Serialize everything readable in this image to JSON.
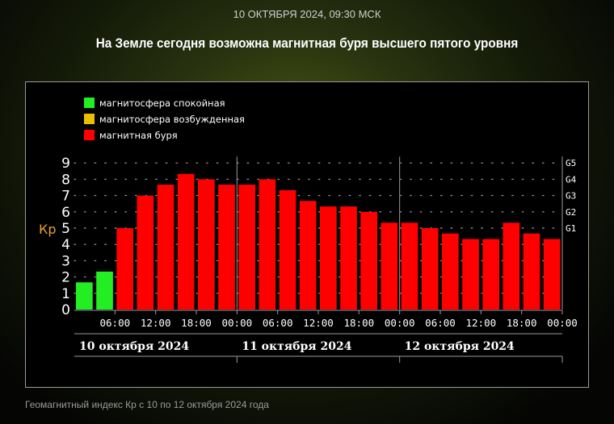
{
  "header": {
    "date": "10 ОКТЯБРЯ 2024, 09:30 МСК",
    "title": "На Земле сегодня возможна магнитная буря высшего пятого уровня"
  },
  "caption": "Геомагнитный индекс Кр с 10 по 12 октября 2024 года",
  "colors": {
    "calm": "#22ee22",
    "excited": "#e8c000",
    "storm": "#ff0000"
  },
  "chart_data": {
    "type": "bar",
    "ylabel": "Кр",
    "ylim": [
      0,
      9
    ],
    "yticks": [
      0,
      1,
      2,
      3,
      4,
      5,
      6,
      7,
      8,
      9
    ],
    "right_axis": [
      {
        "label": "G1",
        "kp": 5
      },
      {
        "label": "G2",
        "kp": 6
      },
      {
        "label": "G3",
        "kp": 7
      },
      {
        "label": "G4",
        "kp": 8
      },
      {
        "label": "G5",
        "kp": 9
      }
    ],
    "legend": [
      {
        "label": "магнитосфера спокойная",
        "status": "calm"
      },
      {
        "label": "магнитосфера возбужденная",
        "status": "excited"
      },
      {
        "label": "магнитная буря",
        "status": "storm"
      }
    ],
    "x_tick_labels": [
      "06:00",
      "12:00",
      "18:00",
      "00:00",
      "06:00",
      "12:00",
      "18:00",
      "00:00",
      "06:00",
      "12:00",
      "18:00",
      "00:00"
    ],
    "days": [
      "10 октября 2024",
      "11 октября 2024",
      "12 октября 2024"
    ],
    "values": [
      1.67,
      2.33,
      5.0,
      7.0,
      7.67,
      8.33,
      8.0,
      7.67,
      7.67,
      8.0,
      7.33,
      6.67,
      6.33,
      6.33,
      6.0,
      5.33,
      5.33,
      5.0,
      4.67,
      4.33,
      4.33,
      5.33,
      4.67,
      4.33
    ],
    "status": [
      "calm",
      "calm",
      "storm",
      "storm",
      "storm",
      "storm",
      "storm",
      "storm",
      "storm",
      "storm",
      "storm",
      "storm",
      "storm",
      "storm",
      "storm",
      "storm",
      "storm",
      "storm",
      "storm",
      "storm",
      "storm",
      "storm",
      "storm",
      "storm"
    ]
  }
}
